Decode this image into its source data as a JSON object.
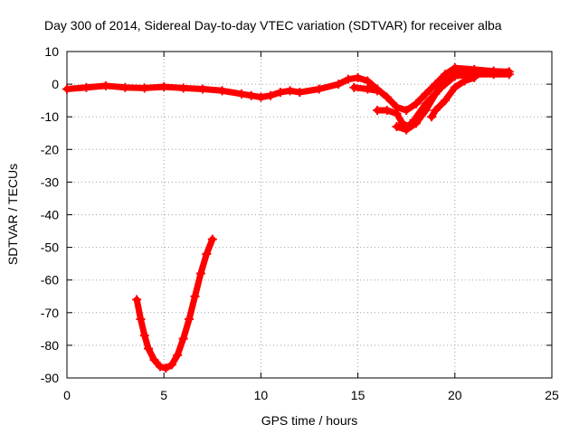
{
  "chart_data": {
    "type": "scatter",
    "title": "Day 300 of 2014, Sidereal Day-to-day VTEC variation (SDTVAR) for receiver alba",
    "xlabel": "GPS time / hours",
    "ylabel": "SDTVAR / TECUs",
    "xlim": [
      0,
      25
    ],
    "ylim": [
      -90,
      10
    ],
    "xticks": [
      0,
      5,
      10,
      15,
      20,
      25
    ],
    "yticks": [
      10,
      0,
      -10,
      -20,
      -30,
      -40,
      -50,
      -60,
      -70,
      -80,
      -90
    ],
    "grid": true,
    "series_color": "#ff0000",
    "series": [
      {
        "name": "track-main",
        "points": [
          [
            0,
            -1.5
          ],
          [
            1,
            -1
          ],
          [
            2,
            -0.5
          ],
          [
            3,
            -1
          ],
          [
            4,
            -1.2
          ],
          [
            5,
            -0.8
          ],
          [
            6,
            -1.2
          ],
          [
            7,
            -1.5
          ],
          [
            8,
            -2
          ],
          [
            9,
            -3
          ],
          [
            9.5,
            -3.5
          ],
          [
            10,
            -4
          ],
          [
            10.5,
            -3.5
          ],
          [
            11,
            -2.5
          ],
          [
            11.5,
            -2
          ],
          [
            12,
            -2.5
          ],
          [
            13,
            -1.5
          ],
          [
            14,
            0
          ],
          [
            14.5,
            1.5
          ],
          [
            15,
            2
          ],
          [
            15.5,
            1
          ],
          [
            16,
            -1.5
          ],
          [
            16.5,
            -4
          ],
          [
            17,
            -7
          ],
          [
            17.5,
            -8
          ],
          [
            18,
            -6
          ],
          [
            18.5,
            -3
          ],
          [
            19,
            0
          ],
          [
            19.5,
            3
          ],
          [
            20,
            5
          ],
          [
            21,
            4.5
          ],
          [
            22,
            4
          ],
          [
            22.8,
            3.8
          ]
        ]
      },
      {
        "name": "track-lower",
        "points": [
          [
            16,
            -8
          ],
          [
            16.5,
            -8
          ],
          [
            17,
            -9
          ],
          [
            17.3,
            -12
          ],
          [
            17.6,
            -13
          ],
          [
            17.9,
            -11
          ],
          [
            18.5,
            -6
          ],
          [
            19.3,
            -1
          ],
          [
            20,
            2.5
          ],
          [
            21,
            3
          ],
          [
            22,
            3
          ],
          [
            22.8,
            3
          ]
        ]
      },
      {
        "name": "track-mid",
        "points": [
          [
            17,
            -13
          ],
          [
            17.5,
            -14
          ],
          [
            18,
            -12
          ],
          [
            18.5,
            -8
          ],
          [
            19,
            -3
          ],
          [
            19.5,
            1
          ],
          [
            20,
            3.5
          ],
          [
            21,
            4
          ],
          [
            22,
            3.8
          ],
          [
            22.7,
            3.5
          ]
        ]
      },
      {
        "name": "track-short",
        "points": [
          [
            14.8,
            -1
          ],
          [
            15.5,
            -1.5
          ],
          [
            16,
            -2
          ]
        ]
      },
      {
        "name": "track-late",
        "points": [
          [
            18.8,
            -10
          ],
          [
            19,
            -8
          ],
          [
            19.5,
            -5
          ],
          [
            20,
            -1
          ],
          [
            20.5,
            1
          ],
          [
            21,
            2
          ]
        ]
      },
      {
        "name": "track-vshape",
        "points": [
          [
            3.6,
            -66
          ],
          [
            3.8,
            -72
          ],
          [
            4.0,
            -77
          ],
          [
            4.2,
            -81
          ],
          [
            4.5,
            -84.5
          ],
          [
            4.8,
            -86.5
          ],
          [
            5.1,
            -87
          ],
          [
            5.4,
            -86
          ],
          [
            5.7,
            -83
          ],
          [
            6.0,
            -78
          ],
          [
            6.3,
            -72
          ],
          [
            6.6,
            -65
          ],
          [
            6.9,
            -58
          ],
          [
            7.2,
            -52
          ],
          [
            7.5,
            -47.5
          ]
        ]
      }
    ]
  }
}
